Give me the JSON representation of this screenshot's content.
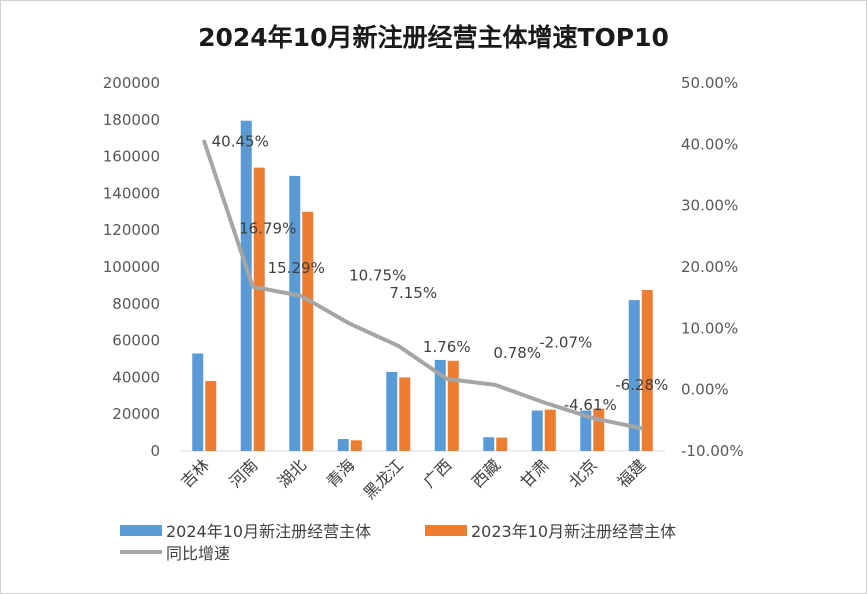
{
  "chart_data": {
    "type": "bar",
    "title": "2024年10月新注册经营主体增速TOP10",
    "categories": [
      "吉林",
      "河南",
      "湖北",
      "青海",
      "黑龙江",
      "广西",
      "西藏",
      "甘肃",
      "北京",
      "福建"
    ],
    "series": [
      {
        "name": "2024年10月新注册经营主体",
        "type": "bar",
        "axis": "left",
        "color": "#5B9BD5",
        "values": [
          53000,
          179500,
          149500,
          6500,
          43000,
          49500,
          7500,
          22000,
          22000,
          82000
        ]
      },
      {
        "name": "2023年10月新注册经营主体",
        "type": "bar",
        "axis": "left",
        "color": "#ED7D31",
        "values": [
          38000,
          154000,
          130000,
          5800,
          40000,
          49000,
          7300,
          22500,
          23000,
          87500
        ]
      },
      {
        "name": "同比增速",
        "type": "line",
        "axis": "right",
        "color": "#A5A5A5",
        "values": [
          40.45,
          16.79,
          15.29,
          10.75,
          7.15,
          1.76,
          0.78,
          -2.07,
          -4.61,
          -6.28
        ],
        "labels": [
          "40.45%",
          "16.79%",
          "15.29%",
          "10.75%",
          "7.15%",
          "1.76%",
          "0.78%",
          "-2.07%",
          "-4.61%",
          "-6.28%"
        ]
      }
    ],
    "y_left": {
      "min": 0,
      "max": 200000,
      "step": 20000,
      "ticks": [
        "0",
        "20000",
        "40000",
        "60000",
        "80000",
        "100000",
        "120000",
        "140000",
        "160000",
        "180000",
        "200000"
      ]
    },
    "y_right": {
      "min": -10,
      "max": 50,
      "step": 10,
      "ticks": [
        "-10.00%",
        "0.00%",
        "10.00%",
        "20.00%",
        "30.00%",
        "40.00%",
        "50.00%"
      ]
    },
    "legend_position": "bottom",
    "grid": false
  }
}
